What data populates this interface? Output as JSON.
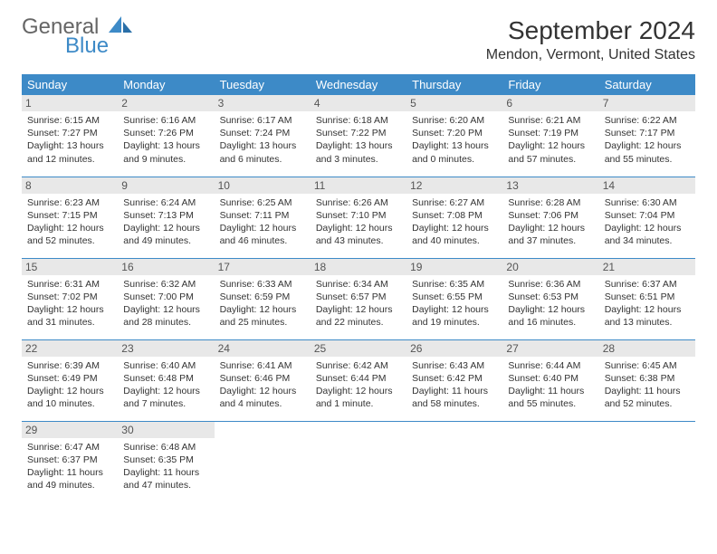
{
  "brand": {
    "general": "General",
    "blue": "Blue"
  },
  "colors": {
    "accent": "#3d8ac7",
    "header_text": "#ffffff",
    "daynum_bg": "#e8e8e8",
    "body_text": "#333333"
  },
  "title": "September 2024",
  "location": "Mendon, Vermont, United States",
  "day_headers": [
    "Sunday",
    "Monday",
    "Tuesday",
    "Wednesday",
    "Thursday",
    "Friday",
    "Saturday"
  ],
  "weeks": [
    [
      {
        "n": "1",
        "sunrise": "Sunrise: 6:15 AM",
        "sunset": "Sunset: 7:27 PM",
        "daylight": "Daylight: 13 hours and 12 minutes."
      },
      {
        "n": "2",
        "sunrise": "Sunrise: 6:16 AM",
        "sunset": "Sunset: 7:26 PM",
        "daylight": "Daylight: 13 hours and 9 minutes."
      },
      {
        "n": "3",
        "sunrise": "Sunrise: 6:17 AM",
        "sunset": "Sunset: 7:24 PM",
        "daylight": "Daylight: 13 hours and 6 minutes."
      },
      {
        "n": "4",
        "sunrise": "Sunrise: 6:18 AM",
        "sunset": "Sunset: 7:22 PM",
        "daylight": "Daylight: 13 hours and 3 minutes."
      },
      {
        "n": "5",
        "sunrise": "Sunrise: 6:20 AM",
        "sunset": "Sunset: 7:20 PM",
        "daylight": "Daylight: 13 hours and 0 minutes."
      },
      {
        "n": "6",
        "sunrise": "Sunrise: 6:21 AM",
        "sunset": "Sunset: 7:19 PM",
        "daylight": "Daylight: 12 hours and 57 minutes."
      },
      {
        "n": "7",
        "sunrise": "Sunrise: 6:22 AM",
        "sunset": "Sunset: 7:17 PM",
        "daylight": "Daylight: 12 hours and 55 minutes."
      }
    ],
    [
      {
        "n": "8",
        "sunrise": "Sunrise: 6:23 AM",
        "sunset": "Sunset: 7:15 PM",
        "daylight": "Daylight: 12 hours and 52 minutes."
      },
      {
        "n": "9",
        "sunrise": "Sunrise: 6:24 AM",
        "sunset": "Sunset: 7:13 PM",
        "daylight": "Daylight: 12 hours and 49 minutes."
      },
      {
        "n": "10",
        "sunrise": "Sunrise: 6:25 AM",
        "sunset": "Sunset: 7:11 PM",
        "daylight": "Daylight: 12 hours and 46 minutes."
      },
      {
        "n": "11",
        "sunrise": "Sunrise: 6:26 AM",
        "sunset": "Sunset: 7:10 PM",
        "daylight": "Daylight: 12 hours and 43 minutes."
      },
      {
        "n": "12",
        "sunrise": "Sunrise: 6:27 AM",
        "sunset": "Sunset: 7:08 PM",
        "daylight": "Daylight: 12 hours and 40 minutes."
      },
      {
        "n": "13",
        "sunrise": "Sunrise: 6:28 AM",
        "sunset": "Sunset: 7:06 PM",
        "daylight": "Daylight: 12 hours and 37 minutes."
      },
      {
        "n": "14",
        "sunrise": "Sunrise: 6:30 AM",
        "sunset": "Sunset: 7:04 PM",
        "daylight": "Daylight: 12 hours and 34 minutes."
      }
    ],
    [
      {
        "n": "15",
        "sunrise": "Sunrise: 6:31 AM",
        "sunset": "Sunset: 7:02 PM",
        "daylight": "Daylight: 12 hours and 31 minutes."
      },
      {
        "n": "16",
        "sunrise": "Sunrise: 6:32 AM",
        "sunset": "Sunset: 7:00 PM",
        "daylight": "Daylight: 12 hours and 28 minutes."
      },
      {
        "n": "17",
        "sunrise": "Sunrise: 6:33 AM",
        "sunset": "Sunset: 6:59 PM",
        "daylight": "Daylight: 12 hours and 25 minutes."
      },
      {
        "n": "18",
        "sunrise": "Sunrise: 6:34 AM",
        "sunset": "Sunset: 6:57 PM",
        "daylight": "Daylight: 12 hours and 22 minutes."
      },
      {
        "n": "19",
        "sunrise": "Sunrise: 6:35 AM",
        "sunset": "Sunset: 6:55 PM",
        "daylight": "Daylight: 12 hours and 19 minutes."
      },
      {
        "n": "20",
        "sunrise": "Sunrise: 6:36 AM",
        "sunset": "Sunset: 6:53 PM",
        "daylight": "Daylight: 12 hours and 16 minutes."
      },
      {
        "n": "21",
        "sunrise": "Sunrise: 6:37 AM",
        "sunset": "Sunset: 6:51 PM",
        "daylight": "Daylight: 12 hours and 13 minutes."
      }
    ],
    [
      {
        "n": "22",
        "sunrise": "Sunrise: 6:39 AM",
        "sunset": "Sunset: 6:49 PM",
        "daylight": "Daylight: 12 hours and 10 minutes."
      },
      {
        "n": "23",
        "sunrise": "Sunrise: 6:40 AM",
        "sunset": "Sunset: 6:48 PM",
        "daylight": "Daylight: 12 hours and 7 minutes."
      },
      {
        "n": "24",
        "sunrise": "Sunrise: 6:41 AM",
        "sunset": "Sunset: 6:46 PM",
        "daylight": "Daylight: 12 hours and 4 minutes."
      },
      {
        "n": "25",
        "sunrise": "Sunrise: 6:42 AM",
        "sunset": "Sunset: 6:44 PM",
        "daylight": "Daylight: 12 hours and 1 minute."
      },
      {
        "n": "26",
        "sunrise": "Sunrise: 6:43 AM",
        "sunset": "Sunset: 6:42 PM",
        "daylight": "Daylight: 11 hours and 58 minutes."
      },
      {
        "n": "27",
        "sunrise": "Sunrise: 6:44 AM",
        "sunset": "Sunset: 6:40 PM",
        "daylight": "Daylight: 11 hours and 55 minutes."
      },
      {
        "n": "28",
        "sunrise": "Sunrise: 6:45 AM",
        "sunset": "Sunset: 6:38 PM",
        "daylight": "Daylight: 11 hours and 52 minutes."
      }
    ],
    [
      {
        "n": "29",
        "sunrise": "Sunrise: 6:47 AM",
        "sunset": "Sunset: 6:37 PM",
        "daylight": "Daylight: 11 hours and 49 minutes."
      },
      {
        "n": "30",
        "sunrise": "Sunrise: 6:48 AM",
        "sunset": "Sunset: 6:35 PM",
        "daylight": "Daylight: 11 hours and 47 minutes."
      },
      null,
      null,
      null,
      null,
      null
    ]
  ]
}
